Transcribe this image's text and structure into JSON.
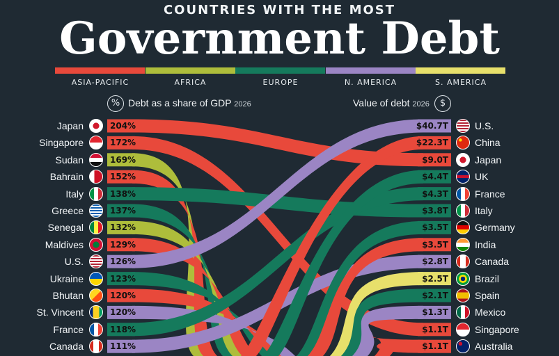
{
  "header": {
    "subtitle": "COUNTRIES WITH THE MOST",
    "title": "Government Debt"
  },
  "regions": [
    {
      "label": "ASIA-PACIFIC",
      "color": "#e8493b"
    },
    {
      "label": "AFRICA",
      "color": "#aebd3b"
    },
    {
      "label": "EUROPE",
      "color": "#157a5c"
    },
    {
      "label": "N. AMERICA",
      "color": "#9b85c4"
    },
    {
      "label": "S. AMERICA",
      "color": "#e7e06b"
    }
  ],
  "left_header": {
    "label": "Debt as a share of GDP",
    "year": "2026",
    "icon": "%"
  },
  "right_header": {
    "label": "Value of debt",
    "year": "2026",
    "icon": "$"
  },
  "chart_data": {
    "type": "table",
    "left": [
      {
        "country": "Japan",
        "value": "204%",
        "region": "ASIA-PACIFIC"
      },
      {
        "country": "Singapore",
        "value": "172%",
        "region": "ASIA-PACIFIC"
      },
      {
        "country": "Sudan",
        "value": "169%",
        "region": "AFRICA"
      },
      {
        "country": "Bahrain",
        "value": "152%",
        "region": "ASIA-PACIFIC"
      },
      {
        "country": "Italy",
        "value": "138%",
        "region": "EUROPE"
      },
      {
        "country": "Greece",
        "value": "137%",
        "region": "EUROPE"
      },
      {
        "country": "Senegal",
        "value": "132%",
        "region": "AFRICA"
      },
      {
        "country": "Maldives",
        "value": "129%",
        "region": "ASIA-PACIFIC"
      },
      {
        "country": "U.S.",
        "value": "126%",
        "region": "N. AMERICA"
      },
      {
        "country": "Ukraine",
        "value": "123%",
        "region": "EUROPE"
      },
      {
        "country": "Bhutan",
        "value": "120%",
        "region": "ASIA-PACIFIC"
      },
      {
        "country": "St. Vincent",
        "value": "120%",
        "region": "N. AMERICA"
      },
      {
        "country": "France",
        "value": "118%",
        "region": "EUROPE"
      },
      {
        "country": "Canada",
        "value": "111%",
        "region": "N. AMERICA"
      }
    ],
    "right": [
      {
        "country": "U.S.",
        "value": "$40.7T",
        "region": "N. AMERICA"
      },
      {
        "country": "China",
        "value": "$22.3T",
        "region": "ASIA-PACIFIC"
      },
      {
        "country": "Japan",
        "value": "$9.0T",
        "region": "ASIA-PACIFIC"
      },
      {
        "country": "UK",
        "value": "$4.4T",
        "region": "EUROPE"
      },
      {
        "country": "France",
        "value": "$4.3T",
        "region": "EUROPE"
      },
      {
        "country": "Italy",
        "value": "$3.8T",
        "region": "EUROPE"
      },
      {
        "country": "Germany",
        "value": "$3.5T",
        "region": "EUROPE"
      },
      {
        "country": "India",
        "value": "$3.5T",
        "region": "ASIA-PACIFIC"
      },
      {
        "country": "Canada",
        "value": "$2.8T",
        "region": "N. AMERICA"
      },
      {
        "country": "Brazil",
        "value": "$2.5T",
        "region": "S. AMERICA"
      },
      {
        "country": "Spain",
        "value": "$2.1T",
        "region": "EUROPE"
      },
      {
        "country": "Mexico",
        "value": "$1.3T",
        "region": "N. AMERICA"
      },
      {
        "country": "Singapore",
        "value": "$1.1T",
        "region": "ASIA-PACIFIC"
      },
      {
        "country": "Australia",
        "value": "$1.1T",
        "region": "ASIA-PACIFIC"
      }
    ]
  }
}
